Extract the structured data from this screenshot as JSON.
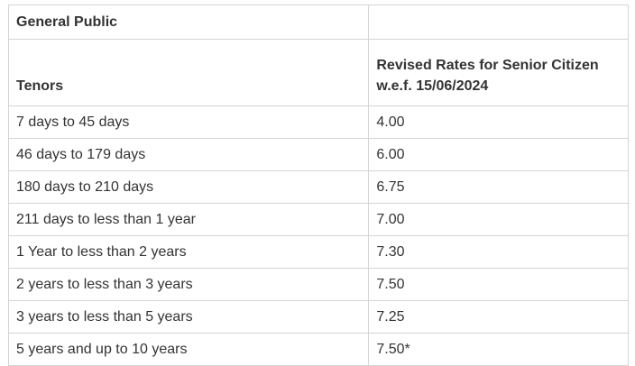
{
  "table": {
    "group_header": "General Public",
    "columns": [
      "Tenors",
      "Revised Rates for Senior Citizen w.e.f. 15/06/2024"
    ],
    "rows": [
      [
        "7 days to 45 days",
        "4.00"
      ],
      [
        "46 days to 179 days",
        "6.00"
      ],
      [
        "180 days to 210 days",
        "6.75"
      ],
      [
        "211 days to less than 1 year",
        "7.00"
      ],
      [
        "1 Year to less than 2 years",
        "7.30"
      ],
      [
        "2 years to less than 3 years",
        "7.50"
      ],
      [
        "3 years to less than 5 years",
        "7.25"
      ],
      [
        "5 years and up to 10 years",
        "7.50*"
      ]
    ]
  }
}
